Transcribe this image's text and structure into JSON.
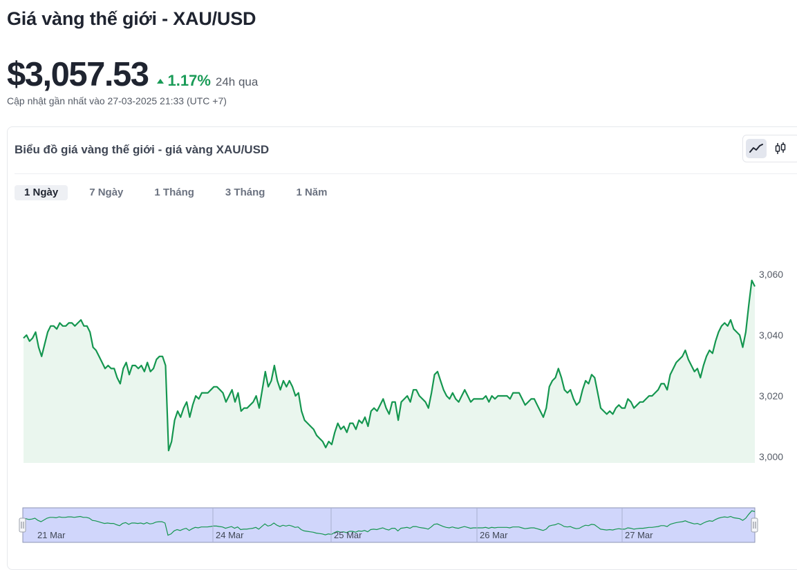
{
  "page": {
    "title": "Giá vàng thế giới - XAU/USD"
  },
  "price": {
    "value": "$3,057.53",
    "change": "1.17%",
    "period": "24h qua",
    "direction": "up",
    "updated": "Cập nhật gần nhất vào 27-03-2025 21:33 (UTC +7)"
  },
  "card": {
    "title": "Biểu đồ giá vàng thế giới - giá vàng XAU/USD",
    "chart_type_buttons": [
      {
        "icon": "line-chart-icon",
        "active": true
      },
      {
        "icon": "candlestick-icon",
        "active": false
      }
    ],
    "tabs": [
      {
        "label": "1 Ngày",
        "active": true
      },
      {
        "label": "7 Ngày",
        "active": false
      },
      {
        "label": "1 Tháng",
        "active": false
      },
      {
        "label": "3 Tháng",
        "active": false
      },
      {
        "label": "1 Năm",
        "active": false
      }
    ]
  },
  "colors": {
    "line": "#14964f",
    "fill": "#eaf6ee",
    "up": "#1a9b57",
    "navigator_fill": "#d0d6fb"
  },
  "chart_data": {
    "type": "area",
    "series": [
      {
        "values": [
          3039,
          3040,
          3038,
          3039,
          3041,
          3036,
          3033,
          3037,
          3041,
          3043,
          3043,
          3042,
          3044,
          3043,
          3043,
          3044,
          3044,
          3043,
          3044,
          3045,
          3043,
          3043,
          3041,
          3036,
          3035,
          3033,
          3031,
          3029,
          3030,
          3029,
          3029,
          3026,
          3024,
          3029,
          3031,
          3027,
          3030,
          3030,
          3029,
          3030,
          3028,
          3031,
          3028,
          3029,
          3032,
          3033,
          3033,
          3030,
          3002,
          3005,
          3012,
          3015,
          3013,
          3016,
          3018,
          3013,
          3017,
          3020,
          3019,
          3021,
          3021,
          3021,
          3022,
          3023,
          3023,
          3022,
          3021,
          3018,
          3020,
          3022,
          3018,
          3021,
          3015,
          3016,
          3016,
          3017,
          3018,
          3020,
          3016,
          3022,
          3028,
          3023,
          3025,
          3030,
          3025,
          3022,
          3025,
          3023,
          3025,
          3023,
          3020,
          3021,
          3015,
          3012,
          3011,
          3010,
          3009,
          3007,
          3006,
          3005,
          3003,
          3005,
          3004,
          3008,
          3011,
          3009,
          3010,
          3008,
          3011,
          3011,
          3009,
          3012,
          3011,
          3013,
          3010,
          3015,
          3016,
          3015,
          3017,
          3019,
          3016,
          3014,
          3018,
          3018,
          3012,
          3018,
          3019,
          3020,
          3018,
          3022,
          3022,
          3020,
          3019,
          3018,
          3016,
          3021,
          3027,
          3028,
          3025,
          3022,
          3020,
          3019,
          3021,
          3019,
          3018,
          3020,
          3022,
          3020,
          3018,
          3019,
          3019,
          3019,
          3019,
          3020,
          3018,
          3020,
          3019,
          3020,
          3020,
          3020,
          3020,
          3019,
          3021,
          3021,
          3021,
          3019,
          3017,
          3018,
          3019,
          3019,
          3017,
          3015,
          3013,
          3016,
          3023,
          3025,
          3026,
          3029,
          3026,
          3022,
          3021,
          3022,
          3019,
          3017,
          3018,
          3022,
          3025,
          3024,
          3027,
          3026,
          3021,
          3016,
          3015,
          3014,
          3015,
          3014,
          3016,
          3017,
          3016,
          3016,
          3019,
          3018,
          3016,
          3017,
          3018,
          3018,
          3019,
          3020,
          3020,
          3021,
          3022,
          3024,
          3024,
          3022,
          3027,
          3029,
          3031,
          3032,
          3033,
          3035,
          3032,
          3030,
          3028,
          3029,
          3026,
          3030,
          3033,
          3035,
          3034,
          3038,
          3041,
          3043,
          3044,
          3043,
          3045,
          3042,
          3041,
          3040,
          3036,
          3041,
          3050,
          3058,
          3056
        ],
        "x_start": "21 Mar",
        "x_end": "27 Mar"
      }
    ],
    "y_ticks": [
      "3,000",
      "3,020",
      "3,040",
      "3,060"
    ],
    "ylim": [
      3000,
      3061
    ],
    "navigator_labels": [
      "21 Mar",
      "24 Mar",
      "25 Mar",
      "26 Mar",
      "27 Mar"
    ],
    "grid": false,
    "legend": "none"
  }
}
